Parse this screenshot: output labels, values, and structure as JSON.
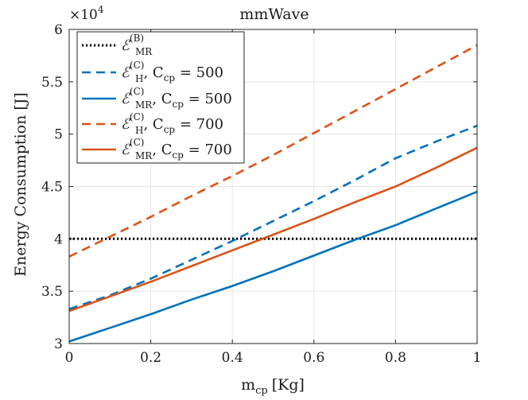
{
  "chart_data": {
    "type": "line",
    "title": "mmWave",
    "xlabel": "m",
    "xlabel_sub": "cp",
    "xlabel_unit": "[Kg]",
    "ylabel": "Energy Consumption [J]",
    "y_exponent_label": "×10",
    "y_exponent_value": "4",
    "xlim": [
      0,
      1
    ],
    "ylim": [
      30000,
      60000
    ],
    "x_ticks": [
      0,
      0.2,
      0.4,
      0.6,
      0.8,
      1
    ],
    "x_tick_labels": [
      "0",
      "0.2",
      "0.4",
      "0.6",
      "0.8",
      "1"
    ],
    "y_ticks": [
      30000,
      35000,
      40000,
      45000,
      50000,
      55000,
      60000
    ],
    "y_tick_labels": [
      "3",
      "3.5",
      "4",
      "4.5",
      "5",
      "5.5",
      "6"
    ],
    "grid": true,
    "legend_position": "top-left",
    "x": [
      0,
      0.1,
      0.2,
      0.3,
      0.4,
      0.5,
      0.6,
      0.7,
      0.8,
      0.9,
      1
    ],
    "series": [
      {
        "name": "E_MR^(B)",
        "legend": {
          "symbol": "ℰ",
          "sub": "MR",
          "sup": "(B)",
          "suffix": ""
        },
        "color": "#000000",
        "style": "dotted",
        "values": [
          40000,
          40000,
          40000,
          40000,
          40000,
          40000,
          40000,
          40000,
          40000,
          40000,
          40000
        ]
      },
      {
        "name": "E_H^(C), Ccp = 500",
        "legend": {
          "symbol": "ℰ",
          "sub": "H",
          "sup": "(C)",
          "suffix": ",  C",
          "suffix_sub": "cp",
          "suffix_tail": " = 500"
        },
        "color": "#0072BD",
        "style": "dashed",
        "values": [
          33300,
          34600,
          36200,
          38000,
          39800,
          41700,
          43600,
          45600,
          47700,
          49300,
          50800
        ]
      },
      {
        "name": "E_MR^(C), Ccp = 500",
        "legend": {
          "symbol": "ℰ",
          "sub": "MR",
          "sup": "(C)",
          "suffix": ",  C",
          "suffix_sub": "cp",
          "suffix_tail": " = 500"
        },
        "color": "#0072BD",
        "style": "solid",
        "values": [
          30200,
          31500,
          32800,
          34200,
          35500,
          36900,
          38400,
          39900,
          41300,
          42900,
          44500
        ]
      },
      {
        "name": "E_H^(C), Ccp = 700",
        "legend": {
          "symbol": "ℰ",
          "sub": "H",
          "sup": "(C)",
          "suffix": ",  C",
          "suffix_sub": "cp",
          "suffix_tail": " = 700"
        },
        "color": "#D95319",
        "style": "dashed",
        "values": [
          38300,
          40200,
          42100,
          44100,
          46000,
          48000,
          50100,
          52200,
          54300,
          56400,
          58500
        ]
      },
      {
        "name": "E_MR^(C), Ccp = 700",
        "legend": {
          "symbol": "ℰ",
          "sub": "MR",
          "sup": "(C)",
          "suffix": ",  C",
          "suffix_sub": "cp",
          "suffix_tail": " = 700"
        },
        "color": "#D95319",
        "style": "solid",
        "values": [
          33100,
          34500,
          35900,
          37400,
          38900,
          40400,
          41900,
          43500,
          45000,
          46800,
          48700
        ]
      }
    ]
  }
}
